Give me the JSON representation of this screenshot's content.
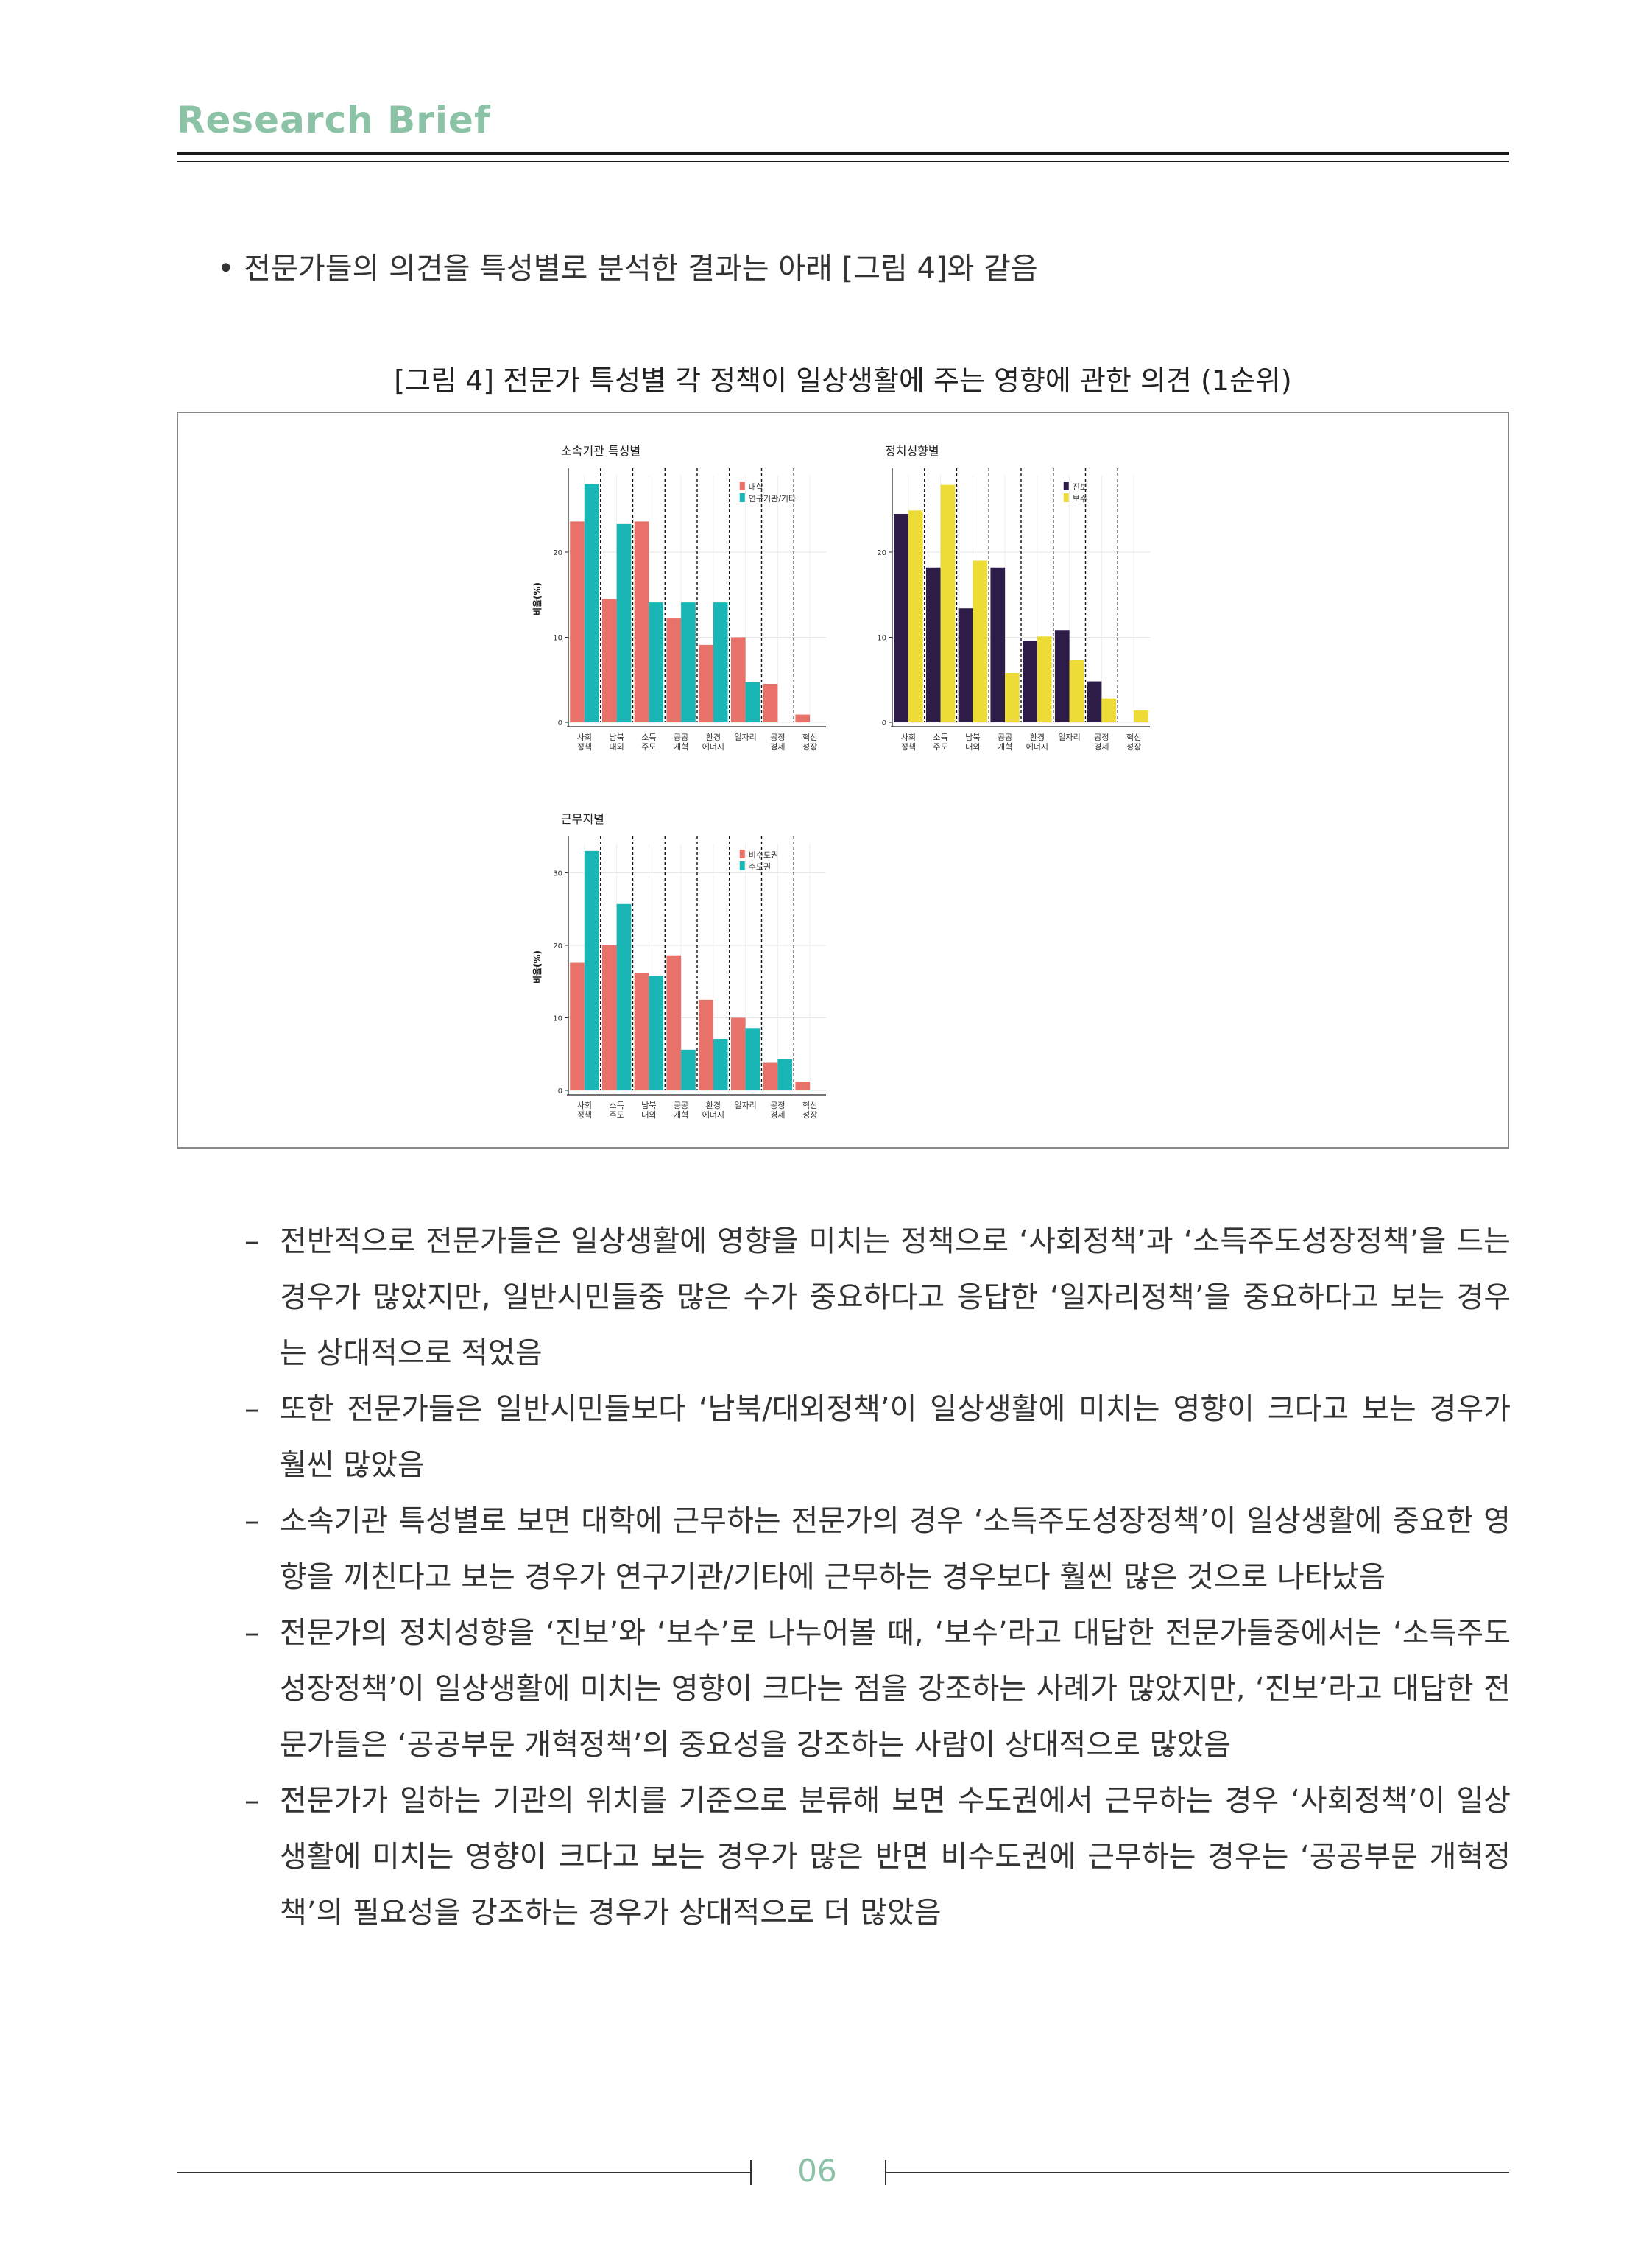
{
  "header": {
    "brand": "Research Brief"
  },
  "intro_bullet": "• 전문가들의 의견을 특성별로 분석한 결과는 아래 [그림 4]와 같음",
  "figure_caption": "[그림 4] 전문가 특성별 각 정책이 일상생활에 주는 영향에 관한 의견 (1순위)",
  "colors": {
    "salmon": "#e8716a",
    "teal": "#1ab5b5",
    "purple": "#2e1c48",
    "yellow": "#ecdc35",
    "brand": "#8cc2a6"
  },
  "chart_data": [
    {
      "type": "bar",
      "title": "소속기관 특성별",
      "ylabel": "비율(%)",
      "categories": [
        "사회\n정책",
        "남북\n대외",
        "소득\n주도",
        "공공\n개혁",
        "환경\n에너지",
        "일자리",
        "공정\n경제",
        "혁신\n성장"
      ],
      "ylim": [
        0,
        29
      ],
      "yticks": [
        0,
        10,
        20
      ],
      "series": [
        {
          "name": "대학",
          "color": "#e8716a",
          "values": [
            23.6,
            14.5,
            23.6,
            12.2,
            9.1,
            10.0,
            4.5,
            0.9
          ]
        },
        {
          "name": "연구기관/기타",
          "color": "#1ab5b5",
          "values": [
            28.0,
            23.3,
            14.1,
            14.1,
            14.1,
            4.7,
            0,
            0
          ]
        }
      ]
    },
    {
      "type": "bar",
      "title": "정치성향별",
      "ylabel": "",
      "categories": [
        "사회\n정책",
        "소득\n주도",
        "남북\n대외",
        "공공\n개혁",
        "환경\n에너지",
        "일자리",
        "공정\n경제",
        "혁신\n성장"
      ],
      "ylim": [
        0,
        29
      ],
      "yticks": [
        0,
        10,
        20
      ],
      "series": [
        {
          "name": "진보",
          "color": "#2e1c48",
          "values": [
            24.5,
            18.2,
            13.4,
            18.2,
            9.6,
            10.8,
            4.8,
            0
          ]
        },
        {
          "name": "보수",
          "color": "#ecdc35",
          "values": [
            24.9,
            27.9,
            19.0,
            5.8,
            10.1,
            7.3,
            2.8,
            1.4
          ]
        }
      ]
    },
    {
      "type": "bar",
      "title": "근무지별",
      "ylabel": "비율(%)",
      "categories": [
        "사회\n정책",
        "소득\n주도",
        "남북\n대외",
        "공공\n개혁",
        "환경\n에너지",
        "일자리",
        "공정\n경제",
        "혁신\n성장"
      ],
      "ylim": [
        0,
        34
      ],
      "yticks": [
        0,
        10,
        20,
        30
      ],
      "series": [
        {
          "name": "비수도권",
          "color": "#e8716a",
          "values": [
            17.6,
            20.0,
            16.2,
            18.6,
            12.5,
            10.0,
            3.8,
            1.2
          ]
        },
        {
          "name": "수도권",
          "color": "#1ab5b5",
          "values": [
            33.0,
            25.7,
            15.8,
            5.6,
            7.1,
            8.6,
            4.3,
            0
          ]
        }
      ]
    }
  ],
  "body_items": [
    "전반적으로 전문가들은 일상생활에 영향을 미치는 정책으로 ‘사회정책’과 ‘소득주도성장정책’을 드는 경우가 많았지만, 일반시민들중 많은 수가 중요하다고 응답한 ‘일자리정책’을 중요하다고 보는 경우는 상대적으로 적었음",
    "또한 전문가들은 일반시민들보다 ‘남북/대외정책’이 일상생활에 미치는 영향이 크다고 보는 경우가 훨씬 많았음",
    "소속기관 특성별로 보면 대학에 근무하는 전문가의 경우 ‘소득주도성장정책’이 일상생활에 중요한 영향을 끼친다고 보는 경우가 연구기관/기타에 근무하는 경우보다 훨씬 많은 것으로 나타났음",
    "전문가의 정치성향을 ‘진보’와 ‘보수’로 나누어볼 때, ‘보수’라고 대답한 전문가들중에서는 ‘소득주도성장정책’이 일상생활에 미치는 영향이 크다는 점을 강조하는 사례가 많았지만, ‘진보’라고 대답한 전문가들은 ‘공공부문 개혁정책’의 중요성을 강조하는 사람이 상대적으로 많았음",
    "전문가가 일하는 기관의 위치를 기준으로 분류해 보면 수도권에서 근무하는 경우 ‘사회정책’이 일상생활에 미치는 영향이 크다고 보는 경우가 많은 반면 비수도권에 근무하는 경우는 ‘공공부문 개혁정책’의 필요성을 강조하는 경우가 상대적으로 더 많았음"
  ],
  "footer": {
    "page_number": "06"
  }
}
